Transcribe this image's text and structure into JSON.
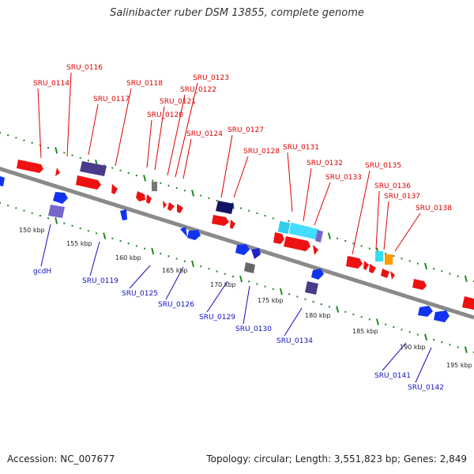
{
  "title": "Salinibacter ruber DSM 13855, complete genome",
  "footer": {
    "accession": "Accession: NC_007677",
    "summary": "Topology: circular; Length: 3,551,823 bp; Genes: 2,849"
  },
  "colors": {
    "forward_label": "#dd0000",
    "reverse_label": "#1010c0",
    "backbone": "#8a8a8a",
    "tick": "#228822"
  },
  "ruler": {
    "unit": "kbp",
    "ticks": [
      "150 kbp",
      "155 kbp",
      "160 kbp",
      "165 kbp",
      "170 kbp",
      "175 kbp",
      "180 kbp",
      "185 kbp",
      "190 kbp",
      "195 kbp"
    ]
  },
  "forward_labels": [
    "SRU_0114",
    "SRU_0116",
    "SRU_0117",
    "SRU_0118",
    "SRU_0120",
    "SRU_0121",
    "SRU_0122",
    "SRU_0123",
    "SRU_0124",
    "SRU_0127",
    "SRU_0128",
    "SRU_0131",
    "SRU_0132",
    "SRU_0133",
    "SRU_0135",
    "SRU_0136",
    "SRU_0137",
    "SRU_0138"
  ],
  "reverse_labels": [
    "gcdH",
    "SRU_0119",
    "SRU_0125",
    "SRU_0126",
    "SRU_0129",
    "SRU_0130",
    "SRU_0134",
    "SRU_0141",
    "SRU_0142"
  ]
}
